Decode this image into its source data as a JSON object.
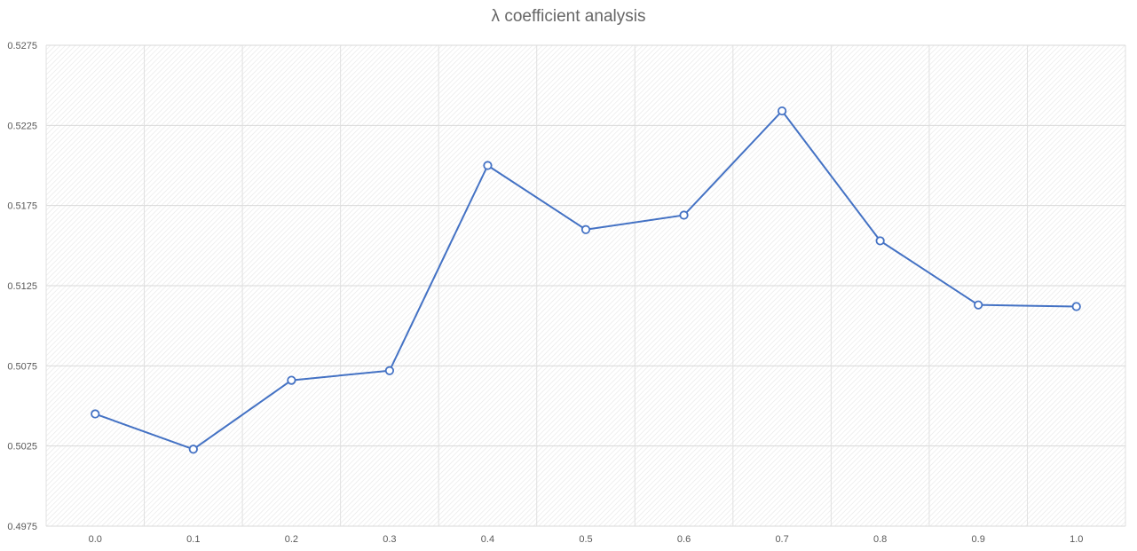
{
  "chart_data": {
    "type": "line",
    "title": "λ coefficient analysis",
    "xlabel": "",
    "ylabel": "",
    "categories": [
      "0.0",
      "0.1",
      "0.2",
      "0.3",
      "0.4",
      "0.5",
      "0.6",
      "0.7",
      "0.8",
      "0.9",
      "1.0"
    ],
    "series": [
      {
        "values": [
          0.5045,
          0.5023,
          0.5066,
          0.5072,
          0.52,
          0.516,
          0.5169,
          0.5234,
          0.5153,
          0.5113,
          0.5112
        ],
        "color": "#4472c4"
      }
    ],
    "ylim": [
      0.4975,
      0.5275
    ],
    "yticks": [
      "0.4975",
      "0.5025",
      "0.5075",
      "0.5125",
      "0.5175",
      "0.5225",
      "0.5275"
    ],
    "grid": true,
    "legend": "none",
    "marker": "hollow-circle"
  }
}
